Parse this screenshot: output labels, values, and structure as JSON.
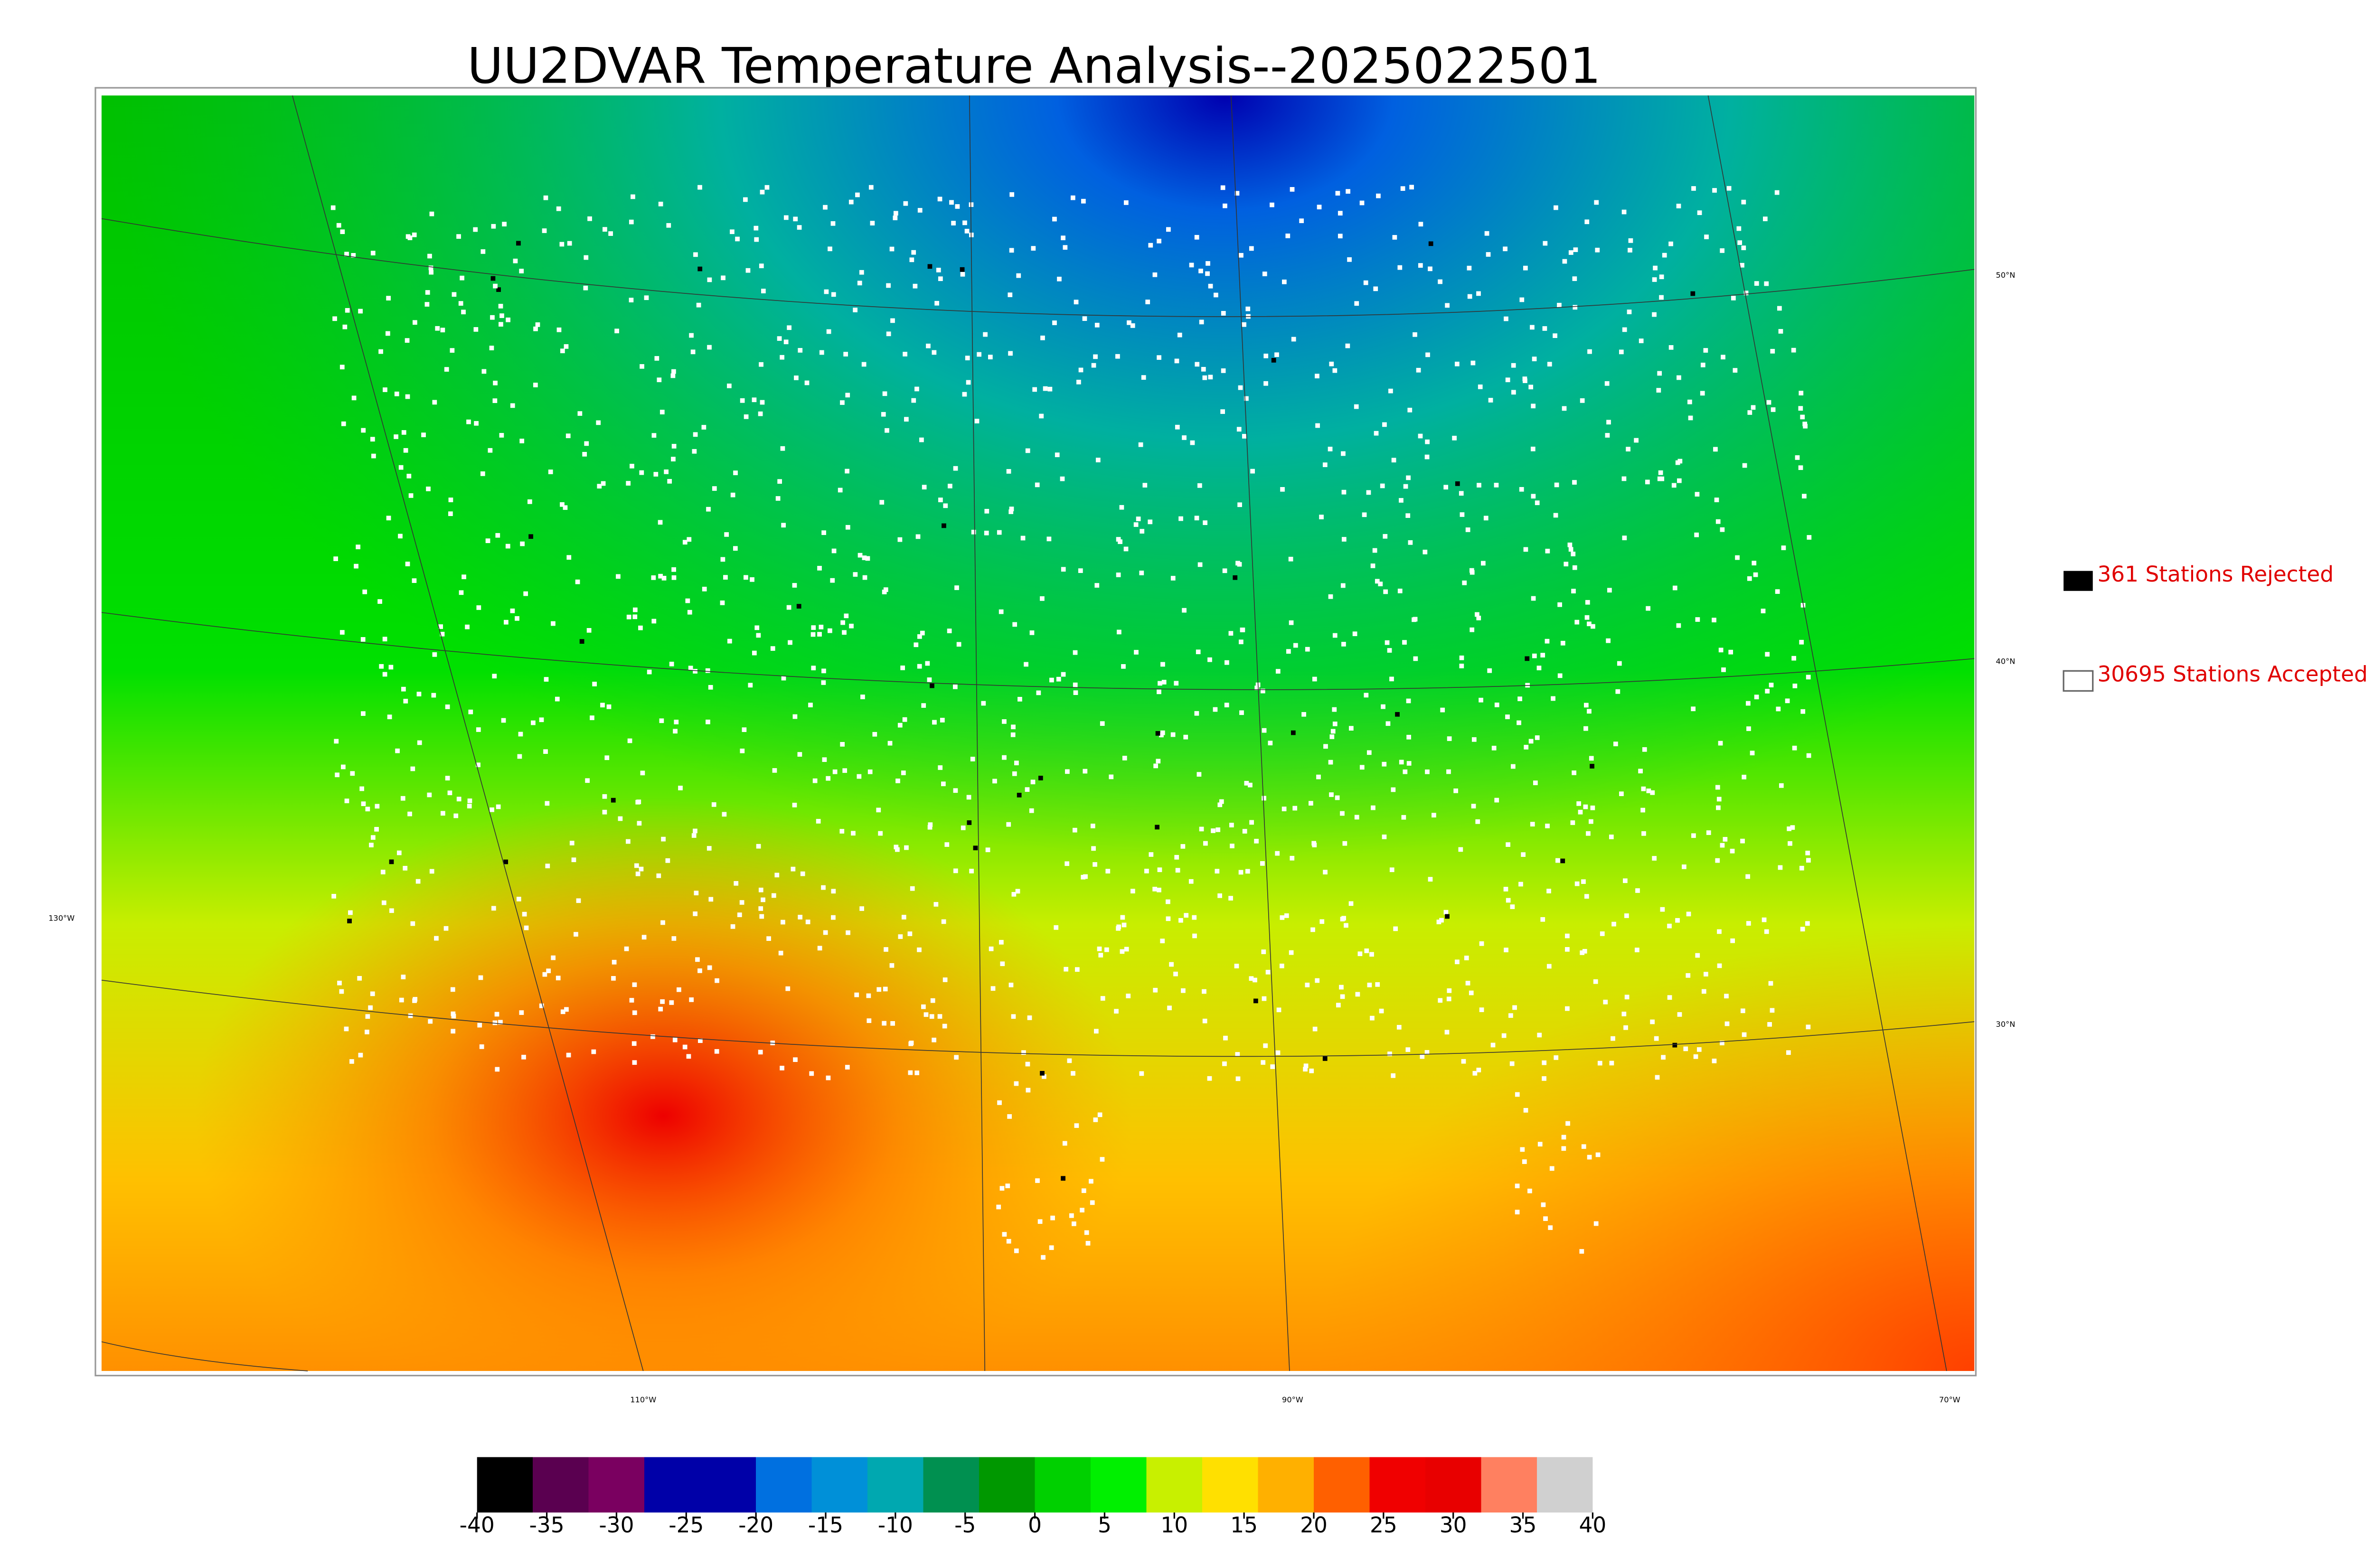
{
  "map": {
    "title": "UU2DVAR Temperature Analysis--2025022501",
    "legend": [
      "361 Stations Rejected",
      "30695 Stations Accepted"
    ],
    "latitude_labels": [
      "50°N",
      "40°N",
      "30°N"
    ],
    "longitude_labels": [
      "130°W",
      "110°W",
      "90°W",
      "70°W"
    ]
  },
  "colorbar": {
    "range": [
      -40,
      40
    ],
    "ticks": [
      -40,
      -35,
      -30,
      -25,
      -20,
      -15,
      -10,
      -5,
      0,
      5,
      10,
      15,
      20,
      25,
      30,
      35,
      40
    ],
    "colors": [
      "#000000",
      "#5a0050",
      "#7a0060",
      "#0000a8",
      "#0000a8",
      "#0070e0",
      "#0090d8",
      "#00a8b0",
      "#009050",
      "#009800",
      "#00d000",
      "#00f000",
      "#c8f000",
      "#ffe000",
      "#ffb000",
      "#ff6000",
      "#f00000",
      "#e80000",
      "#ff8060",
      "#d0d0d0"
    ]
  }
}
